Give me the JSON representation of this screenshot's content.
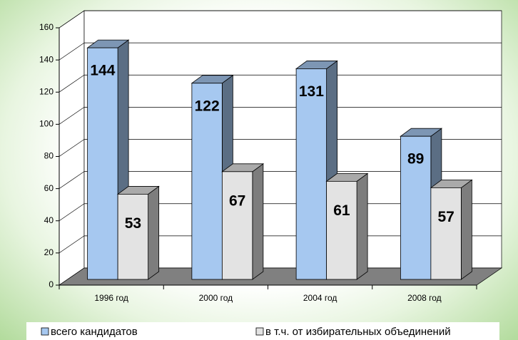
{
  "chart_data": {
    "type": "bar3d",
    "categories": [
      "1996 год",
      "2000 год",
      "2004 год",
      "2008 год"
    ],
    "series": [
      {
        "name": "всего кандидатов",
        "color": "#a6c8f0",
        "values": [
          144,
          122,
          131,
          89
        ]
      },
      {
        "name": "в т.ч. от избирательных объединений",
        "color": "#e3e3e3",
        "values": [
          53,
          67,
          61,
          57
        ]
      }
    ],
    "ylim": [
      0,
      160
    ],
    "yticks": [
      0,
      20,
      40,
      60,
      80,
      100,
      120,
      140,
      160
    ],
    "grid": true,
    "legend": "bottom"
  }
}
